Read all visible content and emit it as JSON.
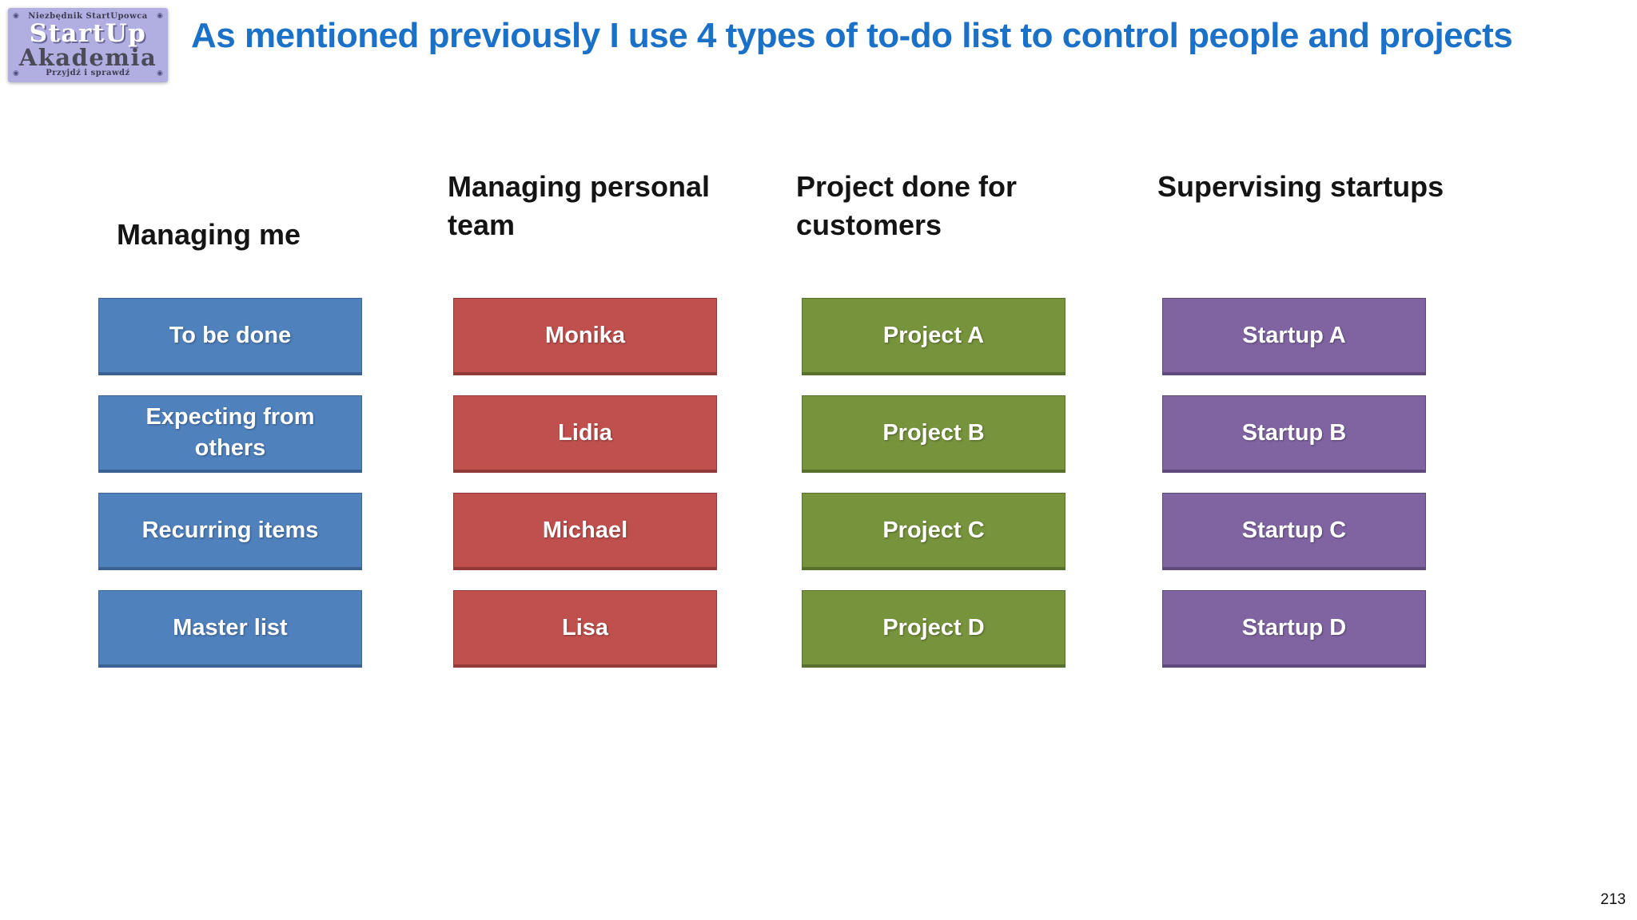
{
  "slide": {
    "title": "As mentioned previously I use 4 types of to-do list to control people and projects",
    "title_color": "#1B70C7",
    "background": "#FFFFFF",
    "page_number": "213"
  },
  "logo": {
    "background": "#B1AFE1",
    "tagline_top": "Niezbędnik StartUpowca",
    "name_line1": "StartUp",
    "name_line2": "Akademia",
    "tagline_bottom": "Przyjdź i sprawdź",
    "screw_icon_glyph": "◉"
  },
  "columns": [
    {
      "id": "managing-me",
      "header": "Managing me",
      "fill": "#4F81BD",
      "border": "#3A6292",
      "items": [
        "To be done",
        "Expecting from others",
        "Recurring items",
        "Master list"
      ]
    },
    {
      "id": "managing-personal-team",
      "header": "Managing personal team",
      "fill": "#C0504D",
      "border": "#92393A",
      "items": [
        "Monika",
        "Lidia",
        "Michael",
        "Lisa"
      ]
    },
    {
      "id": "project-done-for-customers",
      "header": "Project done for customers",
      "fill": "#77933C",
      "border": "#59702C",
      "items": [
        "Project A",
        "Project B",
        "Project C",
        "Project D"
      ]
    },
    {
      "id": "supervising-startups",
      "header": "Supervising startups",
      "fill": "#8064A2",
      "border": "#5E4A7D",
      "items": [
        "Startup A",
        "Startup B",
        "Startup C",
        "Startup D"
      ]
    }
  ]
}
